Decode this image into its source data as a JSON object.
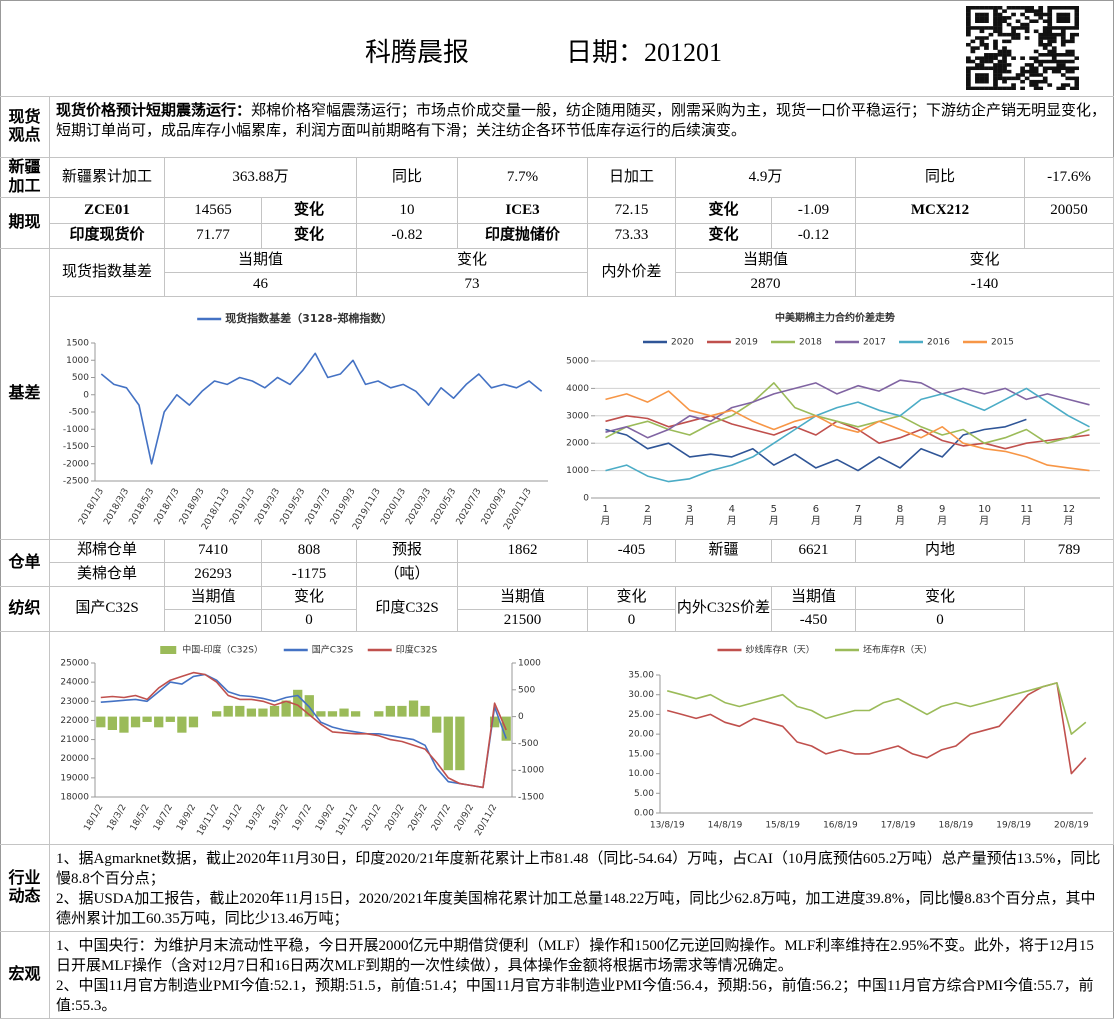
{
  "header": {
    "title": "科腾晨报",
    "date": "日期：201201"
  },
  "spot_view": {
    "label": "现货观点",
    "lead": "现货价格预计短期震荡运行：",
    "text": "郑棉价格窄幅震荡运行；市场点价成交量一般，纺企随用随买，刚需采购为主，现货一口价平稳运行；下游纺企产销无明显变化，短期订单尚可，成品库存小幅累库，利润方面叫前期略有下滑；关注纺企各环节低库存运行的后续演变。"
  },
  "xinjiang": {
    "label": "新疆加工",
    "cells": [
      "新疆累计加工",
      "363.88万",
      "同比",
      "7.7%",
      "日加工",
      "4.9万",
      "同比",
      "-17.6%"
    ]
  },
  "futures": {
    "label": "期现",
    "rows": [
      [
        "ZCE01",
        "14565",
        "变化",
        "10",
        "ICE3",
        "72.15",
        "变化",
        "-1.09",
        "MCX212",
        "20050"
      ],
      [
        "印度现货价",
        "71.77",
        "变化",
        "-0.82",
        "印度抛储价",
        "73.33",
        "变化",
        "-0.12"
      ]
    ]
  },
  "basis": {
    "label": "基差",
    "cells": [
      "现货指数基差",
      "当期值",
      "46",
      "变化",
      "73",
      "内外价差",
      "当期值",
      "2870",
      "变化",
      "-140"
    ]
  },
  "warehouse": {
    "label": "仓单",
    "rows": [
      [
        "郑棉仓单",
        "7410",
        "808",
        "预报",
        "1862",
        "-405",
        "新疆",
        "6621",
        "内地",
        "789"
      ],
      [
        "美棉仓单",
        "26293",
        "-1175",
        "（吨）"
      ]
    ]
  },
  "textile": {
    "label": "纺织",
    "cells": [
      "国产C32S",
      "当期值",
      "21050",
      "变化",
      "0",
      "印度C32S",
      "当期值",
      "21500",
      "变化",
      "0",
      "内外C32S价差",
      "当期值",
      "-450",
      "变化",
      "0"
    ]
  },
  "industry": {
    "label": "行业动态",
    "items": [
      "1、据Agmarknet数据，截止2020年11月30日，印度2020/21年度新花累计上市81.48（同比-54.64）万吨，占CAI（10月底预估605.2万吨）总产量预估13.5%，同比慢8.8个百分点；",
      "2、据USDA加工报告，截止2020年11月15日，2020/2021年度美国棉花累计加工总量148.22万吨，同比少62.8万吨，加工进度39.8%，同比慢8.83个百分点，其中德州累计加工60.35万吨，同比少13.46万吨；"
    ]
  },
  "macro": {
    "label": "宏观",
    "items": [
      "1、中国央行：为维护月末流动性平稳，今日开展2000亿元中期借贷便利（MLF）操作和1500亿元逆回购操作。MLF利率维持在2.95%不变。此外，将于12月15日开展MLF操作（含对12月7日和16日两次MLF到期的一次性续做），具体操作金额将根据市场需求等情况确定。",
      "2、中国11月官方制造业PMI今值:52.1，预期:51.5，前值:51.4；中国11月官方非制造业PMI今值:56.4，预期:56，前值:56.2；中国11月官方综合PMI今值:55.7，前值:55.3。"
    ]
  },
  "chart_data": [
    {
      "type": "line",
      "categories": [
        "2018/1/3",
        null,
        "2018/3/3",
        null,
        "2018/5/3",
        null,
        "2018/7/3",
        null,
        "2018/9/3",
        null,
        "2018/11/3",
        null,
        "2019/1/3",
        null,
        "2019/3/3",
        null,
        "2019/5/3",
        null,
        "2019/7/3",
        null,
        "2019/9/3",
        null,
        "2019/11/3",
        null,
        "2020/1/3",
        null,
        "2020/3/3",
        null,
        "2020/5/3",
        null,
        "2020/7/3",
        null,
        "2020/9/3",
        null,
        "2020/11/3",
        null
      ],
      "series": [
        {
          "name": "现货指数基差（3128-郑棉指数）",
          "color": "#4472c4",
          "values": [
            600,
            300,
            200,
            -300,
            -2000,
            -500,
            0,
            -300,
            100,
            400,
            300,
            500,
            400,
            200,
            500,
            300,
            700,
            1200,
            500,
            600,
            1000,
            300,
            400,
            200,
            300,
            100,
            -300,
            200,
            -100,
            300,
            600,
            200,
            300,
            200,
            400,
            100
          ]
        }
      ],
      "ylim": [
        -2500,
        1500
      ],
      "yticks": [
        -2500,
        -2000,
        -1500,
        -1000,
        -500,
        0,
        500,
        1000,
        1500
      ],
      "grid": false
    },
    {
      "type": "line",
      "title": "中美期棉主力合约价差走势",
      "categories": [
        "1月",
        null,
        "2月",
        null,
        "3月",
        null,
        "4月",
        null,
        "5月",
        null,
        "6月",
        null,
        "7月",
        null,
        "8月",
        null,
        "9月",
        null,
        "10月",
        null,
        "11月",
        null,
        "12月",
        null
      ],
      "series": [
        {
          "name": "2020",
          "color": "#2f5597",
          "values": [
            2500,
            2300,
            1800,
            2000,
            1500,
            1600,
            1500,
            1800,
            1200,
            1600,
            1100,
            1400,
            1000,
            1500,
            1100,
            1800,
            1500,
            2300,
            2500,
            2600,
            2870,
            null,
            null,
            null
          ]
        },
        {
          "name": "2019",
          "color": "#c0504d",
          "values": [
            2800,
            3000,
            2900,
            2600,
            2800,
            3000,
            2700,
            2500,
            2300,
            2600,
            2300,
            2800,
            2500,
            2000,
            2200,
            2500,
            2100,
            1900,
            2000,
            1800,
            2000,
            2100,
            2200,
            2300
          ]
        },
        {
          "name": "2018",
          "color": "#9bbb59",
          "values": [
            2200,
            2600,
            2800,
            2500,
            2300,
            2700,
            3000,
            3500,
            4200,
            3300,
            3000,
            2800,
            2600,
            2800,
            3000,
            2600,
            2300,
            2500,
            2000,
            2200,
            2500,
            2000,
            2200,
            2500
          ]
        },
        {
          "name": "2017",
          "color": "#8064a2",
          "values": [
            2400,
            2600,
            2200,
            2500,
            3000,
            2800,
            3300,
            3500,
            3800,
            4000,
            4200,
            3800,
            4100,
            3900,
            4300,
            4200,
            3800,
            4000,
            3800,
            4000,
            3600,
            3800,
            3600,
            3400
          ]
        },
        {
          "name": "2016",
          "color": "#4bacc6",
          "values": [
            1000,
            1200,
            800,
            600,
            700,
            1000,
            1200,
            1500,
            2000,
            2500,
            3000,
            3300,
            3500,
            3200,
            3000,
            3600,
            3800,
            3500,
            3200,
            3600,
            4000,
            3500,
            3000,
            2600
          ]
        },
        {
          "name": "2015",
          "color": "#f79646",
          "values": [
            3600,
            3800,
            3500,
            3900,
            3200,
            3000,
            3200,
            2800,
            2500,
            2800,
            3000,
            2600,
            2400,
            2800,
            2500,
            2200,
            2600,
            2000,
            1800,
            1700,
            1500,
            1200,
            1100,
            1000
          ]
        }
      ],
      "ylim": [
        0,
        5000
      ],
      "yticks": [
        0,
        1000,
        2000,
        3000,
        4000,
        5000
      ],
      "grid": true
    },
    {
      "type": "combo",
      "categories": [
        "18/1/2",
        null,
        "18/3/2",
        null,
        "18/5/2",
        null,
        "18/7/2",
        null,
        "18/9/2",
        null,
        "18/11/2",
        null,
        "19/1/2",
        null,
        "19/3/2",
        null,
        "19/5/2",
        null,
        "19/7/2",
        null,
        "19/9/2",
        null,
        "19/11/2",
        null,
        "20/1/2",
        null,
        "20/3/2",
        null,
        "20/5/2",
        null,
        "20/7/2",
        null,
        "20/9/2",
        null,
        "20/11/2",
        null
      ],
      "series": [
        {
          "name": "中国-印度（C32S）",
          "type": "bar",
          "axis": "y2",
          "color": "#9bbb59",
          "values": [
            -200,
            -250,
            -300,
            -200,
            -100,
            -200,
            -100,
            -300,
            -200,
            0,
            100,
            200,
            200,
            150,
            150,
            200,
            300,
            500,
            400,
            100,
            100,
            150,
            100,
            0,
            100,
            200,
            200,
            300,
            200,
            -300,
            -1000,
            -1000,
            0,
            0,
            -200,
            -450
          ]
        },
        {
          "name": "国产C32S",
          "type": "line",
          "color": "#4472c4",
          "values": [
            22950,
            23000,
            23050,
            23100,
            23000,
            23500,
            24000,
            23900,
            24300,
            24400,
            24100,
            23500,
            23300,
            23250,
            23150,
            23000,
            23200,
            23300,
            22700,
            21900,
            21650,
            21500,
            21400,
            21300,
            21300,
            21200,
            21100,
            21000,
            20700,
            19500,
            18800,
            18700,
            18600,
            18500,
            22700,
            21050
          ]
        },
        {
          "name": "印度C32S",
          "type": "line",
          "color": "#c0504d",
          "values": [
            23200,
            23250,
            23200,
            23300,
            23100,
            23700,
            24100,
            24300,
            24500,
            24400,
            24000,
            23300,
            23100,
            23100,
            23000,
            22800,
            23000,
            22800,
            22300,
            21800,
            21400,
            21350,
            21300,
            21300,
            21200,
            21000,
            20900,
            20700,
            20500,
            19800,
            19000,
            18700,
            18600,
            18500,
            22900,
            21500
          ]
        }
      ],
      "ylim": [
        18000,
        25000
      ],
      "yticks": [
        18000,
        19000,
        20000,
        21000,
        22000,
        23000,
        24000,
        25000
      ],
      "y2lim": [
        -1500,
        1000
      ],
      "y2ticks": [
        -1500,
        -1000,
        -500,
        0,
        500,
        1000
      ],
      "grid": false
    },
    {
      "type": "line",
      "categories": [
        "13/8/19",
        null,
        null,
        null,
        "14/8/19",
        null,
        null,
        null,
        "15/8/19",
        null,
        null,
        null,
        "16/8/19",
        null,
        null,
        null,
        "17/8/19",
        null,
        null,
        null,
        "18/8/19",
        null,
        null,
        null,
        "19/8/19",
        null,
        null,
        null,
        "20/8/19",
        null
      ],
      "series": [
        {
          "name": "纱线库存R（天）",
          "color": "#c0504d",
          "values": [
            26,
            25,
            24,
            25,
            23,
            22,
            24,
            23,
            22,
            18,
            17,
            15,
            16,
            15,
            15,
            16,
            17,
            15,
            14,
            16,
            17,
            20,
            21,
            22,
            26,
            30,
            32,
            33,
            10,
            14
          ]
        },
        {
          "name": "坯布库存R（天）",
          "color": "#9bbb59",
          "values": [
            31,
            30,
            29,
            30,
            28,
            27,
            28,
            29,
            30,
            27,
            26,
            24,
            25,
            26,
            26,
            28,
            29,
            27,
            25,
            27,
            28,
            27,
            28,
            29,
            30,
            31,
            32,
            33,
            20,
            23
          ]
        }
      ],
      "ylim": [
        0,
        35
      ],
      "yticks": [
        {
          "value": 0,
          "label": "0.00"
        },
        {
          "value": 5,
          "label": "5.00"
        },
        {
          "value": 10,
          "label": "10.00"
        },
        {
          "value": 15,
          "label": "15.00"
        },
        {
          "value": 20,
          "label": "20.00"
        },
        {
          "value": 25,
          "label": "25.00"
        },
        {
          "value": 30,
          "label": "30.00"
        },
        {
          "value": 35,
          "label": "35.00"
        }
      ],
      "grid": false
    }
  ]
}
